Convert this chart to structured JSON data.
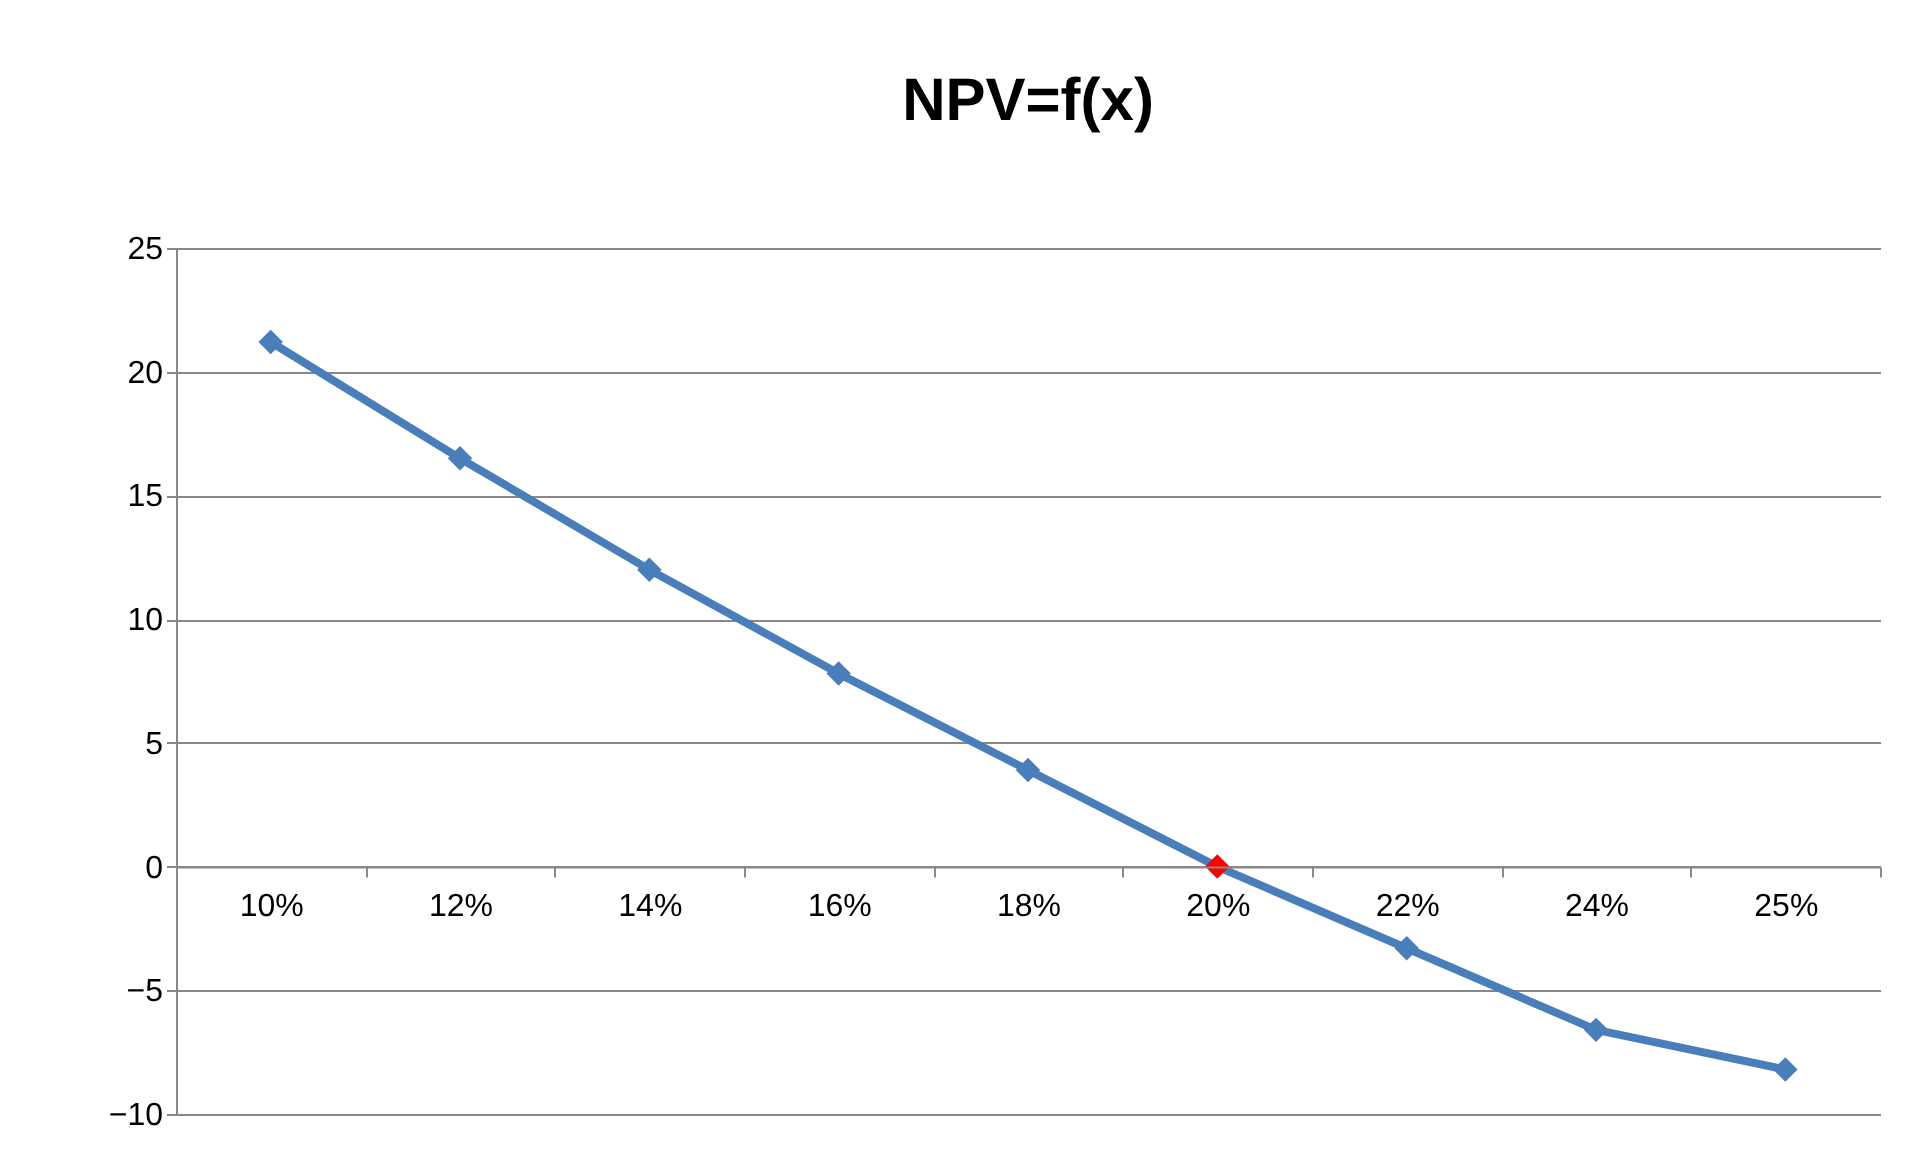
{
  "chart_data": {
    "type": "line",
    "title": "NPV=f(x)",
    "categories": [
      "10%",
      "12%",
      "14%",
      "16%",
      "18%",
      "20%",
      "22%",
      "24%",
      "25%"
    ],
    "series": [
      {
        "color": "#4a7ebb",
        "colors": [
          "#4a7ebb",
          "#4a7ebb",
          "#4a7ebb",
          "#4a7ebb",
          "#4a7ebb",
          "#ff0000",
          "#4a7ebb",
          "#4a7ebb",
          "#4a7ebb"
        ],
        "values": [
          21.2,
          16.5,
          12.0,
          7.8,
          3.9,
          0,
          -3.3,
          -6.6,
          -8.2
        ]
      }
    ],
    "ylim": [
      -10,
      25
    ],
    "yticks": [
      -10,
      -5,
      0,
      5,
      10,
      15,
      20,
      25
    ],
    "grid": "y",
    "marker": "diamond"
  }
}
